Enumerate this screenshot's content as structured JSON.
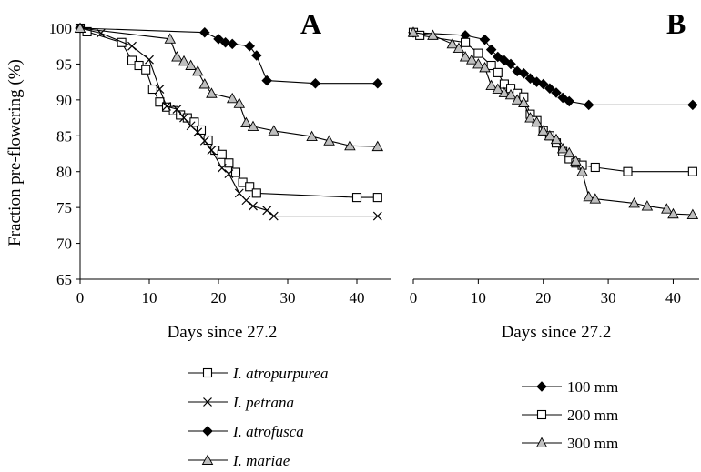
{
  "figure": {
    "ylabel": "Fraction pre-flowering (%)",
    "legend_species": [
      "I. atropurpurea",
      "I. petrana",
      "I. atrofusca",
      "I. mariae"
    ],
    "legend_depth": [
      "100 mm",
      "200 mm",
      "300 mm"
    ]
  },
  "chart_data": [
    {
      "type": "line",
      "panel": "A",
      "xlabel": "Days since 27.2",
      "ylabel": "Fraction pre-flowering (%)",
      "xlim": [
        0,
        45
      ],
      "ylim": [
        65,
        100
      ],
      "xticks": [
        "0",
        "10",
        "20",
        "30",
        "40"
      ],
      "yticks": [
        "65",
        "70",
        "75",
        "80",
        "85",
        "90",
        "95",
        "100"
      ],
      "legend": "below",
      "grid": false,
      "series": [
        {
          "name": "I. atropurpurea",
          "marker": "square",
          "x": [
            0,
            1,
            6,
            7.5,
            8.5,
            9.5,
            10.5,
            11.5,
            12.5,
            13.5,
            14.5,
            15.5,
            16.5,
            17.5,
            18.5,
            19.5,
            20.5,
            21.5,
            22.5,
            23.5,
            24.5,
            25.5,
            40,
            43
          ],
          "y": [
            100,
            99.5,
            98,
            95.5,
            94.8,
            94.2,
            91.5,
            89.7,
            89,
            88.5,
            87.9,
            87.5,
            86.9,
            85.8,
            84.4,
            83,
            82.4,
            81.2,
            79.9,
            78.5,
            77.9,
            77,
            76.4,
            76.4
          ]
        },
        {
          "name": "I. petrana",
          "marker": "x",
          "x": [
            0,
            3,
            7.5,
            10,
            11.5,
            12.5,
            14,
            15,
            16,
            17,
            18,
            19,
            20.5,
            21.5,
            23,
            24,
            25,
            27,
            28,
            43
          ],
          "y": [
            100,
            99.3,
            97.5,
            95.6,
            91.5,
            89.1,
            88.7,
            87.5,
            86.4,
            85.5,
            84.3,
            83,
            80.5,
            79.7,
            77,
            76,
            75.2,
            74.6,
            73.8,
            73.8
          ]
        },
        {
          "name": "I. atrofusca",
          "marker": "diamond",
          "x": [
            0,
            18,
            20,
            21,
            22,
            24.5,
            25.5,
            27,
            34,
            43
          ],
          "y": [
            100,
            99.4,
            98.5,
            98,
            97.8,
            97.5,
            96.2,
            92.7,
            92.3,
            92.3
          ]
        },
        {
          "name": "I. mariae",
          "marker": "triangle",
          "x": [
            0,
            13,
            14,
            15,
            16,
            17,
            18,
            19,
            22,
            23,
            24,
            25,
            28,
            33.5,
            36,
            39,
            43
          ],
          "y": [
            100,
            98.5,
            96,
            95.4,
            94.8,
            94,
            92.2,
            90.9,
            90.2,
            89.5,
            86.8,
            86.3,
            85.7,
            84.9,
            84.3,
            83.6,
            83.5
          ]
        }
      ]
    },
    {
      "type": "line",
      "panel": "B",
      "xlabel": "Days since 27.2",
      "xlim": [
        0,
        44
      ],
      "ylim": [
        65,
        100
      ],
      "xticks": [
        "0",
        "10",
        "20",
        "30",
        "40"
      ],
      "legend": "below",
      "grid": false,
      "series": [
        {
          "name": "100 mm",
          "marker": "diamond",
          "x": [
            0,
            8,
            11,
            12,
            13,
            14,
            15,
            16,
            17,
            18,
            19,
            20,
            21,
            22,
            23,
            24,
            27,
            43
          ],
          "y": [
            99.4,
            99,
            98.4,
            97,
            96,
            95.5,
            95,
            94,
            93.7,
            93,
            92.5,
            92.2,
            91.6,
            91,
            90.3,
            89.8,
            89.3,
            89.3
          ]
        },
        {
          "name": "200 mm",
          "marker": "square",
          "x": [
            0,
            1,
            8,
            10,
            12,
            13,
            14,
            15,
            16,
            17,
            18,
            19,
            20,
            21,
            22,
            23,
            24,
            25,
            26,
            28,
            33,
            43
          ],
          "y": [
            99.4,
            99,
            98,
            96.5,
            94.8,
            93.8,
            92.2,
            91.6,
            90.9,
            90.4,
            88,
            87.1,
            85.7,
            85,
            84,
            82.8,
            81.8,
            81.2,
            80.9,
            80.6,
            80,
            80
          ]
        },
        {
          "name": "300 mm",
          "marker": "triangle",
          "x": [
            0,
            3,
            6,
            7,
            8,
            9,
            10,
            11,
            12,
            13,
            14,
            15,
            16,
            17,
            18,
            19,
            20,
            21,
            22,
            23,
            24,
            25,
            26,
            27,
            28,
            34,
            36,
            39,
            40,
            43
          ],
          "y": [
            99.4,
            99,
            97.8,
            97.2,
            96,
            95.6,
            95,
            94.5,
            92,
            91.5,
            91,
            90.7,
            90,
            89.6,
            87.5,
            86.9,
            85.7,
            85,
            84.5,
            83.2,
            82.6,
            81.5,
            80,
            76.5,
            76.2,
            75.6,
            75.2,
            74.8,
            74.1,
            74
          ]
        }
      ]
    }
  ]
}
